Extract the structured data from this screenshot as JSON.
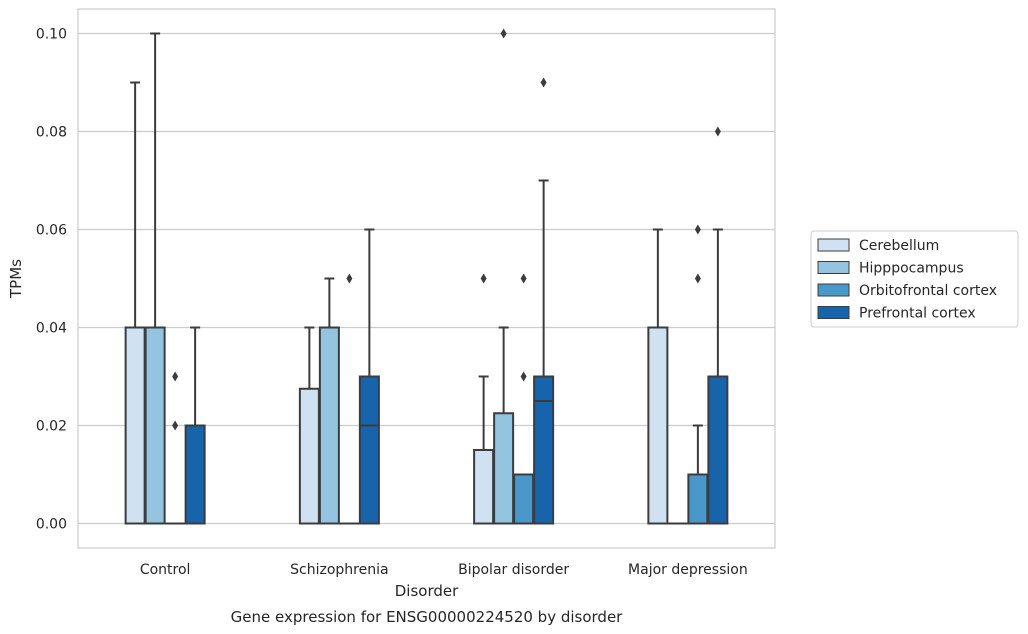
{
  "chart_data": {
    "type": "box",
    "title": "",
    "caption": "Gene expression for ENSG00000224520 by disorder",
    "xlabel": "Disorder",
    "ylabel": "TPMs",
    "ylim": [
      -0.005,
      0.105
    ],
    "yticks": [
      0.0,
      0.02,
      0.04,
      0.06,
      0.08,
      0.1
    ],
    "ytick_labels": [
      "0.00",
      "0.02",
      "0.04",
      "0.06",
      "0.08",
      "0.10"
    ],
    "grid": "horizontal",
    "legend_position": "right",
    "categories": [
      "Control",
      "Schizophrenia",
      "Bipolar disorder",
      "Major depression"
    ],
    "series": [
      {
        "name": "Cerebellum",
        "color": "#d0e1f2",
        "boxes": [
          {
            "min": 0.0,
            "q1": 0.0,
            "median": 0.0,
            "q3": 0.04,
            "max": 0.09,
            "outliers": []
          },
          {
            "min": 0.0,
            "q1": 0.0,
            "median": 0.0,
            "q3": 0.0275,
            "max": 0.04,
            "outliers": []
          },
          {
            "min": 0.0,
            "q1": 0.0,
            "median": 0.0,
            "q3": 0.015,
            "max": 0.03,
            "outliers": [
              0.05
            ]
          },
          {
            "min": 0.0,
            "q1": 0.0,
            "median": 0.0,
            "q3": 0.04,
            "max": 0.06,
            "outliers": []
          }
        ]
      },
      {
        "name": "Hipppocampus",
        "color": "#94c4df",
        "boxes": [
          {
            "min": 0.0,
            "q1": 0.0,
            "median": 0.0,
            "q3": 0.04,
            "max": 0.1,
            "outliers": []
          },
          {
            "min": 0.0,
            "q1": 0.0,
            "median": 0.0,
            "q3": 0.04,
            "max": 0.05,
            "outliers": []
          },
          {
            "min": 0.0,
            "q1": 0.0,
            "median": 0.0,
            "q3": 0.0225,
            "max": 0.04,
            "outliers": [
              0.1
            ]
          },
          {
            "min": 0.0,
            "q1": 0.0,
            "median": 0.0,
            "q3": 0.0,
            "max": 0.0,
            "outliers": []
          }
        ]
      },
      {
        "name": "Orbitofrontal cortex",
        "color": "#4a98c9",
        "boxes": [
          {
            "min": 0.0,
            "q1": 0.0,
            "median": 0.0,
            "q3": 0.0,
            "max": 0.0,
            "outliers": [
              0.02,
              0.03
            ]
          },
          {
            "min": 0.0,
            "q1": 0.0,
            "median": 0.0,
            "q3": 0.0,
            "max": 0.0,
            "outliers": [
              0.05
            ]
          },
          {
            "min": 0.0,
            "q1": 0.0,
            "median": 0.0,
            "q3": 0.01,
            "max": 0.01,
            "outliers": [
              0.03,
              0.05
            ]
          },
          {
            "min": 0.0,
            "q1": 0.0,
            "median": 0.0,
            "q3": 0.01,
            "max": 0.02,
            "outliers": [
              0.05,
              0.06
            ]
          }
        ]
      },
      {
        "name": "Prefrontal cortex",
        "color": "#1764ab",
        "boxes": [
          {
            "min": 0.0,
            "q1": 0.0,
            "median": 0.0,
            "q3": 0.02,
            "max": 0.04,
            "outliers": []
          },
          {
            "min": 0.0,
            "q1": 0.0,
            "median": 0.02,
            "q3": 0.03,
            "max": 0.06,
            "outliers": []
          },
          {
            "min": 0.0,
            "q1": 0.0,
            "median": 0.025,
            "q3": 0.03,
            "max": 0.07,
            "outliers": [
              0.09
            ]
          },
          {
            "min": 0.0,
            "q1": 0.0,
            "median": 0.0,
            "q3": 0.03,
            "max": 0.06,
            "outliers": [
              0.08
            ]
          }
        ]
      }
    ]
  }
}
